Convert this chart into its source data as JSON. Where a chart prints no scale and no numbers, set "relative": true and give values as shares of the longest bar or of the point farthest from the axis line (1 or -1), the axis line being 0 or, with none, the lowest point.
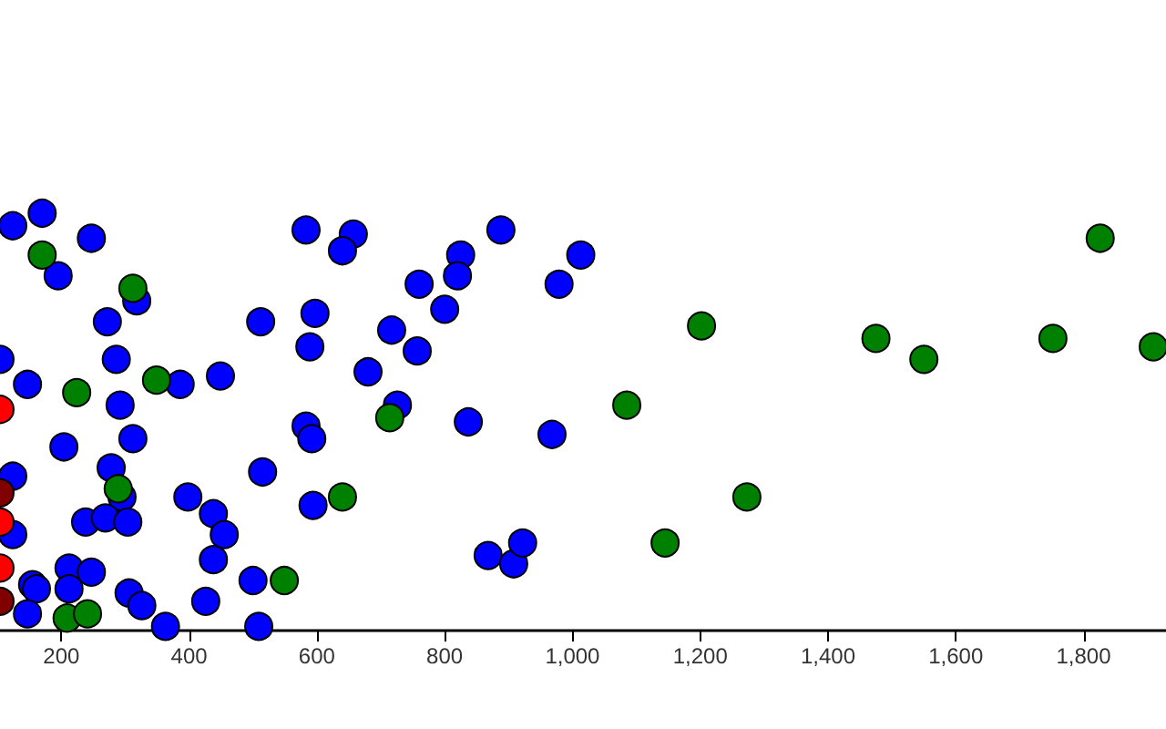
{
  "chart_data": {
    "type": "scatter",
    "relative": true,
    "marker": "circle",
    "xlim": [
      104,
      1929
    ],
    "xticks": [
      200,
      400,
      600,
      800,
      {
        "value": 1000,
        "label": "1,000"
      },
      {
        "value": 1200,
        "label": "1,200"
      },
      {
        "value": 1400,
        "label": "1,400"
      },
      {
        "value": 1600,
        "label": "1,600"
      },
      {
        "value": 1800,
        "label": "1,800"
      }
    ],
    "series": [
      {
        "color": "#0000ff",
        "x": [
          124,
          170,
          247,
          195,
          318,
          272,
          286,
          104,
          147,
          386,
          449,
          292,
          312,
          204,
          278,
          295,
          124,
          238,
          269,
          304,
          398,
          438,
          455,
          124,
          438,
          212,
          247,
          155,
          161,
          212,
          306,
          326,
          426,
          500,
          147,
          363,
          509,
          583,
          657,
          640,
          512,
          597,
          589,
          717,
          680,
          726,
          583,
          592,
          515,
          594,
          888,
          825,
          820,
          760,
          800,
          757,
          1013,
          979,
          837,
          968,
          868,
          908,
          922
        ],
        "values": [
          0.97,
          1.0,
          0.94,
          0.85,
          0.79,
          0.74,
          0.65,
          0.65,
          0.59,
          0.59,
          0.61,
          0.54,
          0.46,
          0.44,
          0.39,
          0.32,
          0.37,
          0.26,
          0.27,
          0.26,
          0.32,
          0.28,
          0.23,
          0.23,
          0.17,
          0.15,
          0.14,
          0.11,
          0.1,
          0.1,
          0.09,
          0.06,
          0.07,
          0.12,
          0.04,
          0.01,
          0.01,
          0.96,
          0.95,
          0.91,
          0.74,
          0.76,
          0.68,
          0.72,
          0.62,
          0.54,
          0.49,
          0.46,
          0.38,
          0.3,
          0.96,
          0.9,
          0.85,
          0.83,
          0.77,
          0.67,
          0.9,
          0.83,
          0.5,
          0.47,
          0.18,
          0.16,
          0.21
        ]
      },
      {
        "color": "#008000",
        "x": [
          170,
          312,
          224,
          349,
          289,
          549,
          209,
          241,
          714,
          640,
          1202,
          1085,
          1273,
          1145,
          1475,
          1550,
          1752,
          1826,
          1909
        ],
        "values": [
          0.9,
          0.82,
          0.57,
          0.6,
          0.34,
          0.12,
          0.03,
          0.04,
          0.51,
          0.32,
          0.73,
          0.54,
          0.32,
          0.21,
          0.7,
          0.65,
          0.7,
          0.94,
          0.68
        ]
      },
      {
        "color": "#ff0000",
        "x": [
          104,
          104,
          104
        ],
        "values": [
          0.53,
          0.26,
          0.15
        ]
      },
      {
        "color": "#800000",
        "x": [
          104,
          104
        ],
        "values": [
          0.33,
          0.07
        ]
      }
    ]
  }
}
